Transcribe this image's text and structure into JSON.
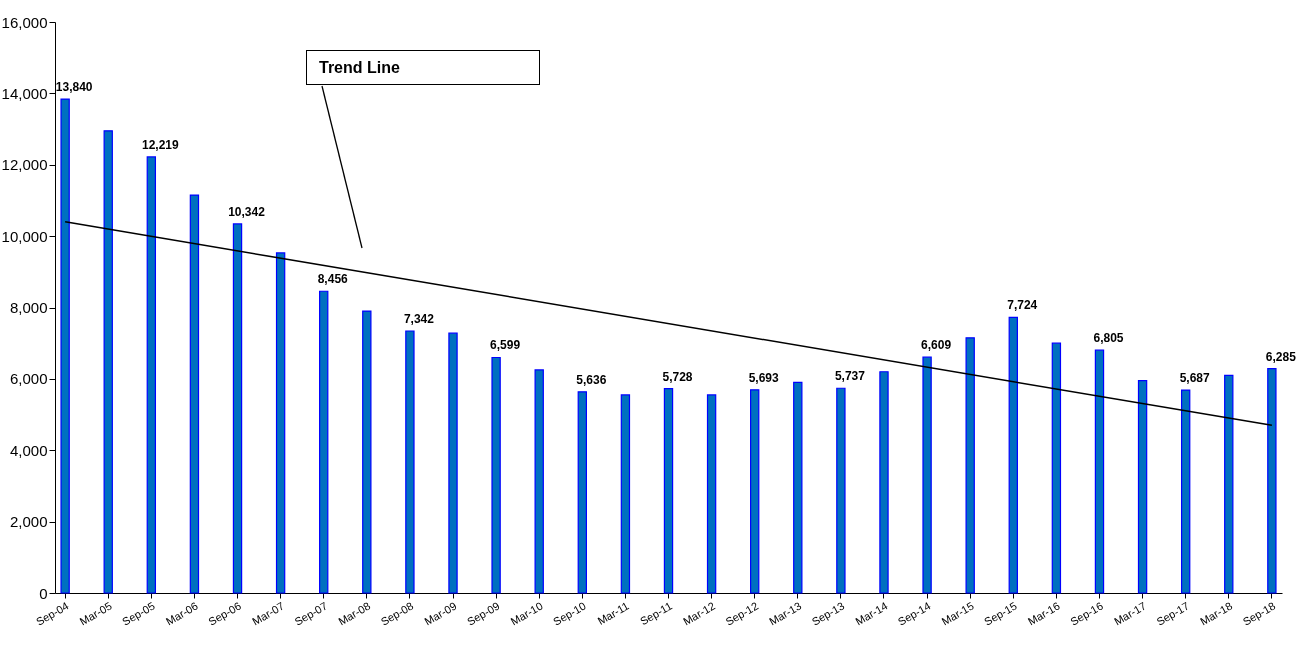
{
  "chart_data": {
    "type": "bar",
    "categories": [
      "Sep-04",
      "Mar-05",
      "Sep-05",
      "Mar-06",
      "Sep-06",
      "Mar-07",
      "Sep-07",
      "Mar-08",
      "Sep-08",
      "Mar-09",
      "Sep-09",
      "Mar-10",
      "Sep-10",
      "Mar-11",
      "Sep-11",
      "Mar-12",
      "Sep-12",
      "Mar-13",
      "Sep-13",
      "Mar-14",
      "Sep-14",
      "Mar-15",
      "Sep-15",
      "Mar-16",
      "Sep-16",
      "Mar-17",
      "Sep-17",
      "Mar-18",
      "Sep-18"
    ],
    "series": [
      {
        "color": "#0070c0",
        "values": [
          13840,
          12950,
          12219,
          11150,
          10342,
          9530,
          8456,
          7900,
          7342,
          7280,
          6599,
          6250,
          5636,
          5550,
          5728,
          5550,
          5693,
          5900,
          5737,
          6200,
          6609,
          7150,
          7724,
          7000,
          6805,
          5950,
          5687,
          6100,
          6285
        ],
        "value_labels": [
          "13,840",
          null,
          "12,219",
          null,
          "10,342",
          null,
          "8,456",
          null,
          "7,342",
          null,
          "6,599",
          null,
          "5,636",
          null,
          "5,728",
          null,
          "5,693",
          null,
          "5,737",
          null,
          "6,609",
          null,
          "7,724",
          null,
          "6,805",
          null,
          "5,687",
          null,
          "6,285"
        ]
      },
      {
        "type": "line",
        "color": "#000000",
        "x": [
          "Sep-04",
          "Sep-18"
        ],
        "values": [
          10400,
          4700
        ]
      }
    ],
    "ylim": [
      0,
      16000
    ],
    "yticks": [
      0,
      {
        "value": 2000,
        "label": "2,000"
      },
      {
        "value": 4000,
        "label": "4,000"
      },
      {
        "value": 6000,
        "label": "6,000"
      },
      {
        "value": 8000,
        "label": "8,000"
      },
      {
        "value": 10000,
        "label": "10,000"
      },
      {
        "value": 12000,
        "label": "12,000"
      },
      {
        "value": 14000,
        "label": "14,000"
      },
      {
        "value": 16000,
        "label": "16,000"
      }
    ],
    "grid": false,
    "annotations": [
      "Trend Line"
    ]
  }
}
